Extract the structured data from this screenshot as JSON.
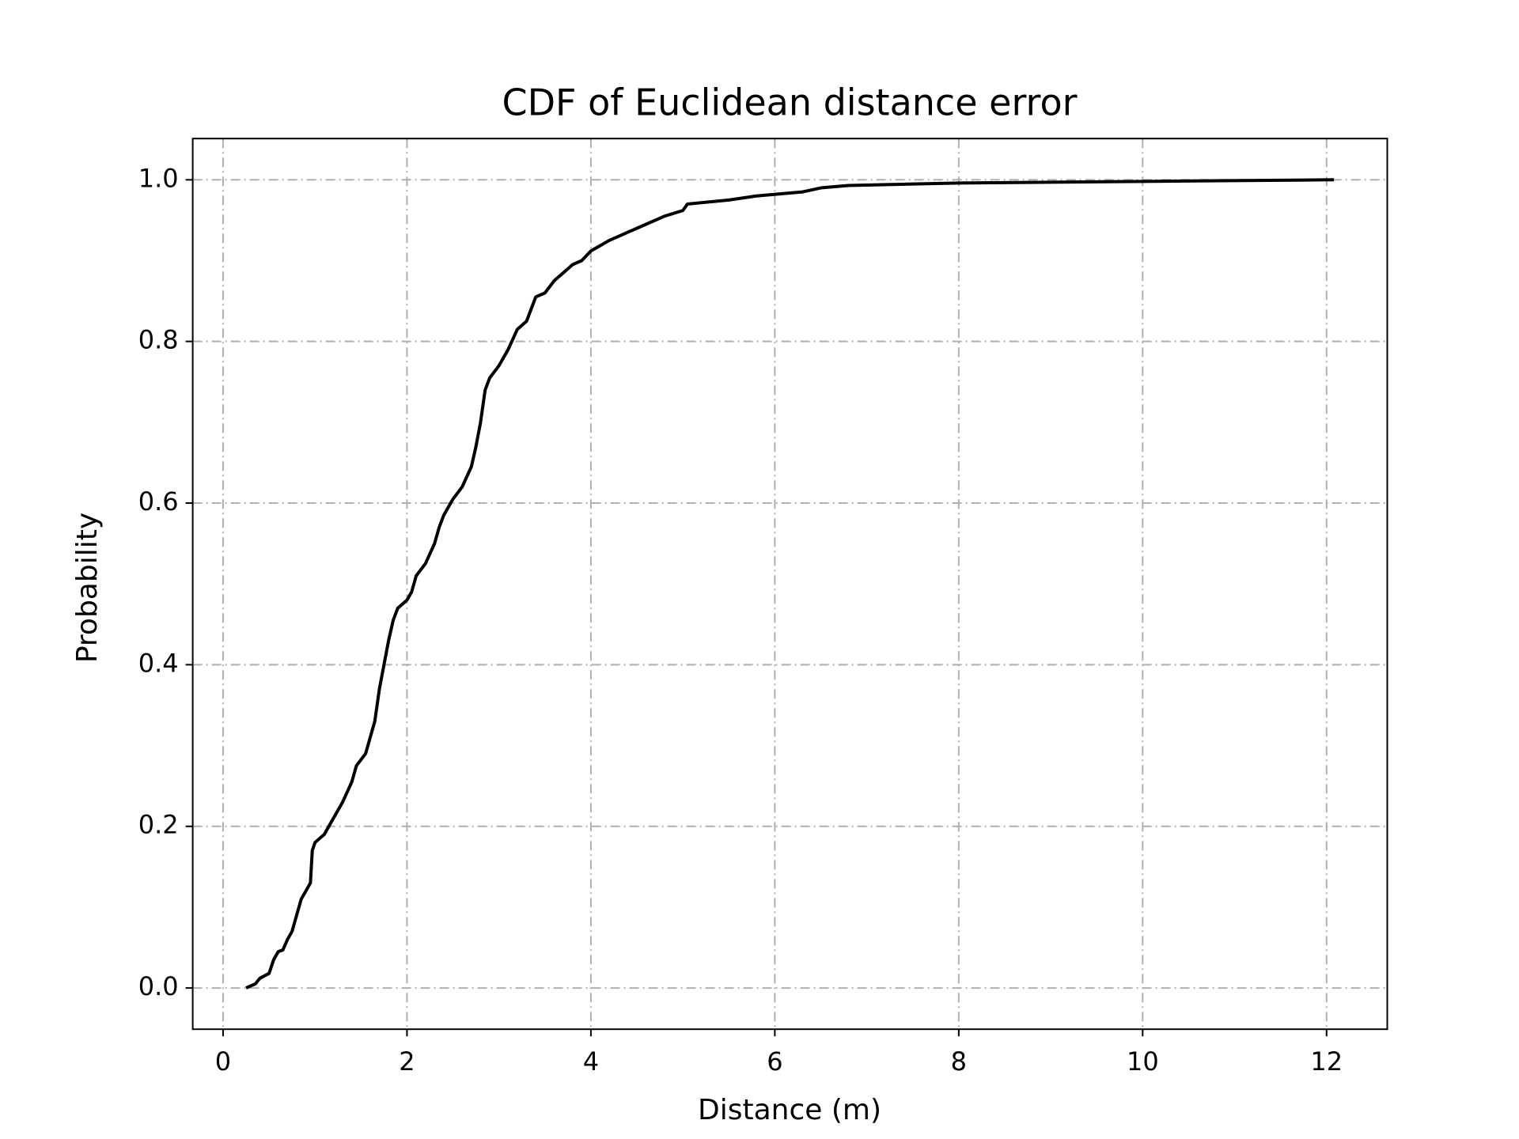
{
  "chart_data": {
    "type": "line",
    "title": "CDF of Euclidean distance error",
    "x_label": "Distance (m)",
    "y_label": "Probability",
    "x": [
      0.25,
      0.35,
      0.4,
      0.5,
      0.55,
      0.6,
      0.65,
      0.7,
      0.75,
      0.8,
      0.85,
      0.9,
      0.95,
      0.97,
      1.0,
      1.05,
      1.1,
      1.15,
      1.2,
      1.3,
      1.4,
      1.45,
      1.55,
      1.6,
      1.65,
      1.7,
      1.75,
      1.8,
      1.85,
      1.9,
      2.0,
      2.05,
      2.1,
      2.2,
      2.3,
      2.35,
      2.4,
      2.5,
      2.6,
      2.7,
      2.75,
      2.8,
      2.85,
      2.9,
      3.0,
      3.1,
      3.2,
      3.3,
      3.4,
      3.5,
      3.6,
      3.7,
      3.8,
      3.9,
      4.0,
      4.2,
      4.4,
      4.6,
      4.8,
      5.0,
      5.05,
      5.5,
      5.8,
      6.3,
      6.5,
      6.8,
      8.0,
      10.0,
      12.08
    ],
    "series": [
      {
        "name": "CDF",
        "color": "#000000",
        "values": [
          0,
          0.005,
          0.012,
          0.018,
          0.035,
          0.045,
          0.047,
          0.06,
          0.07,
          0.09,
          0.11,
          0.12,
          0.13,
          0.17,
          0.18,
          0.185,
          0.19,
          0.2,
          0.21,
          0.23,
          0.255,
          0.275,
          0.29,
          0.31,
          0.33,
          0.37,
          0.4,
          0.43,
          0.455,
          0.47,
          0.48,
          0.49,
          0.51,
          0.525,
          0.55,
          0.57,
          0.585,
          0.605,
          0.62,
          0.645,
          0.67,
          0.7,
          0.74,
          0.755,
          0.77,
          0.79,
          0.815,
          0.825,
          0.855,
          0.86,
          0.875,
          0.885,
          0.895,
          0.9,
          0.912,
          0.925,
          0.935,
          0.945,
          0.955,
          0.962,
          0.97,
          0.975,
          0.98,
          0.985,
          0.99,
          0.993,
          0.996,
          0.998,
          1.0
        ]
      }
    ],
    "xlim": [
      -0.33,
      12.66
    ],
    "ylim": [
      -0.051,
      1.051
    ],
    "xticks": [
      0,
      2,
      4,
      6,
      8,
      10,
      12
    ],
    "yticks": [
      {
        "value": 0,
        "label": "0.0"
      },
      {
        "value": 0.2,
        "label": "0.2"
      },
      {
        "value": 0.4,
        "label": "0.4"
      },
      {
        "value": 0.6,
        "label": "0.6"
      },
      {
        "value": 0.8,
        "label": "0.8"
      },
      {
        "value": 1,
        "label": "1.0"
      }
    ],
    "grid": true
  }
}
